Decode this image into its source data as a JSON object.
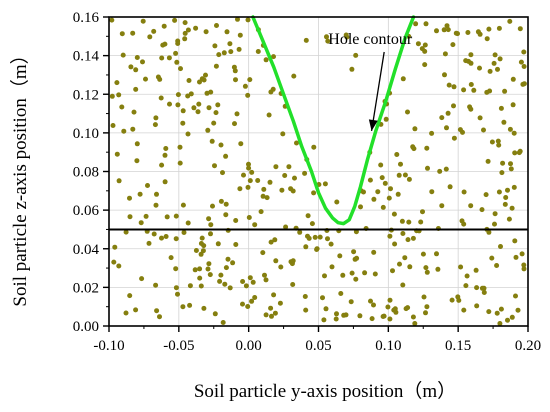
{
  "chart_data": {
    "type": "scatter",
    "title": "",
    "xlabel": "Soil particle y-axis position（m）",
    "ylabel": "Soil particle z-axis position（m）",
    "xlim": [
      -0.1,
      0.2
    ],
    "ylim": [
      0.0,
      0.16
    ],
    "x_ticks": [
      "-0.10",
      "-0.05",
      "0.00",
      "0.05",
      "0.10",
      "0.15",
      "0.20"
    ],
    "y_ticks": [
      "0.00",
      "0.02",
      "0.04",
      "0.06",
      "0.08",
      "0.10",
      "0.12",
      "0.14",
      "0.16"
    ],
    "grid": true,
    "legend": "none",
    "colors": {
      "particles": "#857f0f",
      "contour": "#22e02a",
      "axes": "#000000",
      "grid": "#d3d3d3"
    },
    "particle_count_approx": 520,
    "reference_line": {
      "y": 0.05
    },
    "series": [
      {
        "kind": "line",
        "points": [
          [
            0.003,
            0.16
          ],
          [
            0.01,
            0.148
          ],
          [
            0.018,
            0.134
          ],
          [
            0.025,
            0.12
          ],
          [
            0.032,
            0.106
          ],
          [
            0.038,
            0.093
          ],
          [
            0.045,
            0.08
          ],
          [
            0.05,
            0.069
          ],
          [
            0.055,
            0.061
          ],
          [
            0.06,
            0.056
          ],
          [
            0.064,
            0.0535
          ],
          [
            0.068,
            0.053
          ],
          [
            0.072,
            0.055
          ],
          [
            0.076,
            0.062
          ],
          [
            0.08,
            0.072
          ],
          [
            0.085,
            0.086
          ],
          [
            0.091,
            0.101
          ],
          [
            0.098,
            0.116
          ],
          [
            0.105,
            0.133
          ],
          [
            0.112,
            0.149
          ],
          [
            0.118,
            0.16
          ]
        ]
      }
    ],
    "annotations": [
      {
        "text": "Hole contour",
        "x": 0.057,
        "y": 0.146,
        "arrow_to": [
          0.088,
          0.101
        ]
      }
    ]
  }
}
